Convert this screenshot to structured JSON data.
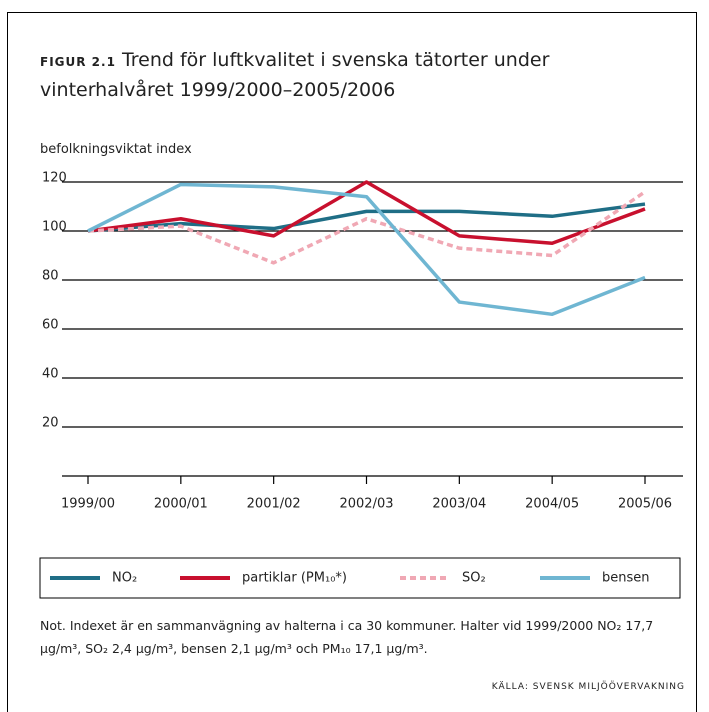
{
  "chart_data": {
    "type": "line",
    "figure_label": "FIGUR 2.1",
    "title": "Trend för luftkvalitet i svenska tätorter under vinterhalvåret 1999/2000–2005/2006",
    "y_label": "befolkningsviktat index",
    "categories": [
      "1999/00",
      "2000/01",
      "2001/02",
      "2002/03",
      "2003/04",
      "2004/05",
      "2005/06"
    ],
    "series": [
      {
        "name": "NO₂",
        "color": "#1f6e86",
        "dashed": false,
        "values": [
          100,
          103,
          101,
          108,
          108,
          106,
          111
        ]
      },
      {
        "name": "partiklar (PM₁₀*)",
        "color": "#c8102e",
        "dashed": false,
        "values": [
          100,
          105,
          98,
          120,
          98,
          95,
          109
        ]
      },
      {
        "name": "SO₂",
        "color": "#f0a8b4",
        "dashed": true,
        "values": [
          100,
          102,
          87,
          105,
          93,
          90,
          116
        ]
      },
      {
        "name": "bensen",
        "color": "#6fb6d2",
        "dashed": false,
        "values": [
          100,
          119,
          118,
          114,
          71,
          66,
          81
        ]
      }
    ],
    "ylim": [
      0,
      120
    ],
    "yticks": [
      20,
      40,
      60,
      80,
      100,
      120
    ],
    "grid": true,
    "note": "Not. Indexet är en sammanvägning av halterna i ca 30 kommuner. Halter vid 1999/2000 NO₂ 17,7 µg/m³, SO₂ 2,4 µg/m³, bensen 2,1 µg/m³ och PM₁₀ 17,1 µg/m³.",
    "source": "KÄLLA: SVENSK MILJÖÖVERVAKNING"
  }
}
